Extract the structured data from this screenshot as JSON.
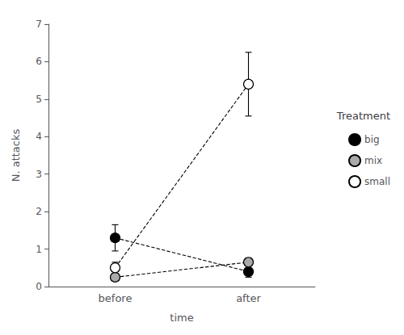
{
  "chart_data": {
    "type": "line",
    "xlabel": "time",
    "ylabel": "N. attacks",
    "legend_title": "Treatment",
    "categories": [
      "before",
      "after"
    ],
    "series": [
      {
        "name": "big",
        "color": "#000000",
        "values": [
          1.3,
          0.4
        ],
        "errors": [
          0.35,
          0.15
        ]
      },
      {
        "name": "mix",
        "color": "#aaaaaa",
        "values": [
          0.25,
          0.65
        ],
        "errors": [
          0.1,
          0.1
        ]
      },
      {
        "name": "small",
        "color": "#ffffff",
        "values": [
          0.5,
          5.4
        ],
        "errors": [
          0.15,
          0.85
        ]
      }
    ],
    "ylim": [
      0,
      7
    ],
    "yticks": [
      0,
      1,
      2,
      3,
      4,
      5,
      6,
      7
    ],
    "grid": false,
    "legend": "right",
    "marker": "circle",
    "line_style": "dashed"
  }
}
